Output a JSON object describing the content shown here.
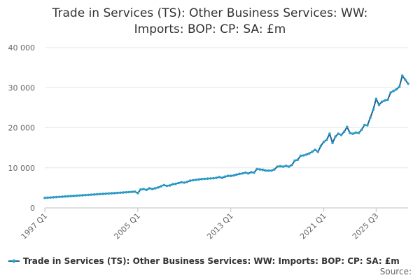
{
  "chart_data": {
    "type": "line",
    "title_lines": [
      "Trade in Services (TS): Other Business Services: WW:",
      "Imports: BOP: CP: SA: £m"
    ],
    "xlabel": "",
    "ylabel": "",
    "ylim": [
      0,
      40000
    ],
    "y_ticks": [
      {
        "value": 0,
        "label": "0"
      },
      {
        "value": 10000,
        "label": "10 000"
      },
      {
        "value": 20000,
        "label": "20 000"
      },
      {
        "value": 30000,
        "label": "30 000"
      },
      {
        "value": 40000,
        "label": "40 000"
      }
    ],
    "x_ticks": [
      {
        "label": "1997 Q1"
      },
      {
        "label": "2005 Q1"
      },
      {
        "label": "2013 Q1"
      },
      {
        "label": "2021 Q1"
      },
      {
        "label": "2025 Q3"
      }
    ],
    "x_start": "1997 Q1",
    "grid": true,
    "legend_position": "bottom",
    "series": [
      {
        "name": "Trade in Services (TS): Other Business Services: WW: Imports: BOP: CP: SA: £m",
        "color": "#206095",
        "marker_color": "#27a0cc",
        "values": [
          2500,
          2550,
          2600,
          2650,
          2700,
          2750,
          2800,
          2850,
          2900,
          2950,
          3000,
          3050,
          3100,
          3150,
          3200,
          3250,
          3300,
          3350,
          3400,
          3450,
          3500,
          3550,
          3600,
          3650,
          3700,
          3750,
          3800,
          3850,
          3900,
          3950,
          4000,
          4050,
          3700,
          4600,
          4700,
          4500,
          4900,
          4700,
          4900,
          5100,
          5400,
          5700,
          5500,
          5600,
          5900,
          6000,
          6200,
          6400,
          6300,
          6500,
          6800,
          6900,
          7000,
          7100,
          7200,
          7250,
          7300,
          7350,
          7400,
          7500,
          7700,
          7500,
          7800,
          8000,
          8000,
          8100,
          8300,
          8500,
          8600,
          8800,
          8600,
          8900,
          8800,
          9700,
          9600,
          9500,
          9300,
          9300,
          9300,
          9600,
          10300,
          10400,
          10300,
          10500,
          10300,
          10700,
          11800,
          12000,
          13000,
          13100,
          13300,
          13600,
          14000,
          14500,
          14000,
          15500,
          16500,
          17000,
          18500,
          16200,
          17800,
          18500,
          18200,
          19000,
          20200,
          18700,
          18500,
          18800,
          18700,
          19500,
          20700,
          20600,
          22500,
          24500,
          27200,
          25700,
          26500,
          26800,
          27000,
          28800,
          29200,
          29600,
          30200,
          33000,
          32000,
          31000
        ]
      }
    ]
  },
  "legend": {
    "label": "Trade in Services (TS): Other Business Services: WW: Imports: BOP: CP: SA: £m"
  },
  "footer": {
    "source_label": "Source:"
  }
}
